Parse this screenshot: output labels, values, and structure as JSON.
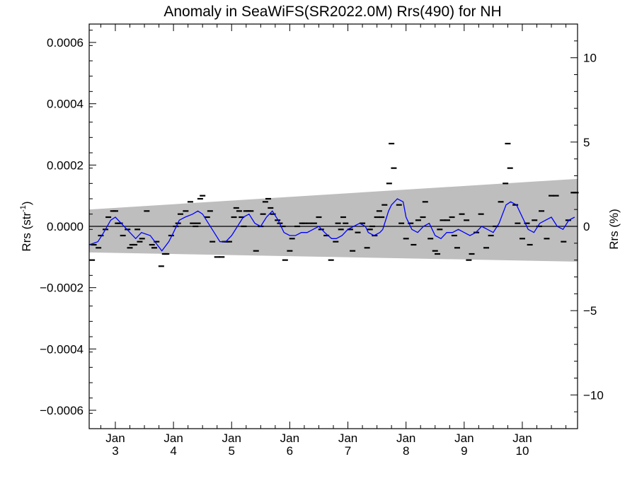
{
  "chart_data": {
    "type": "line",
    "title": "Anomaly in SeaWiFS(SR2022.0M) Rrs(490) for NH",
    "ylabel_left": {
      "main": "Rrs (str",
      "sup": "-1",
      "close": ")"
    },
    "ylabel_right": "Rrs (%)",
    "xlim": [
      2.55,
      10.95
    ],
    "ylim_left": [
      -0.00066,
      0.00066
    ],
    "ylim_right": [
      -12.0,
      12.0
    ],
    "x_ticks": [
      {
        "x": 3.0,
        "top": "Jan",
        "bottom": "3"
      },
      {
        "x": 4.0,
        "top": "Jan",
        "bottom": "4"
      },
      {
        "x": 5.0,
        "top": "Jan",
        "bottom": "5"
      },
      {
        "x": 6.0,
        "top": "Jan",
        "bottom": "6"
      },
      {
        "x": 7.0,
        "top": "Jan",
        "bottom": "7"
      },
      {
        "x": 8.0,
        "top": "Jan",
        "bottom": "8"
      },
      {
        "x": 9.0,
        "top": "Jan",
        "bottom": "9"
      },
      {
        "x": 10.0,
        "top": "Jan",
        "bottom": "10"
      }
    ],
    "y_ticks_left": [
      {
        "value": 0.0006,
        "label": "0.0006"
      },
      {
        "value": 0.0004,
        "label": "0.0004"
      },
      {
        "value": 0.0002,
        "label": "0.0002"
      },
      {
        "value": 0.0,
        "label": "0.0000"
      },
      {
        "value": -0.0002,
        "label": "−0.0002"
      },
      {
        "value": -0.0004,
        "label": "−0.0004"
      },
      {
        "value": -0.0006,
        "label": "−0.0006"
      }
    ],
    "y_ticks_right": [
      {
        "value": 10,
        "label": "10"
      },
      {
        "value": 5,
        "label": "5"
      },
      {
        "value": 0,
        "label": "0"
      },
      {
        "value": -5,
        "label": "−5"
      },
      {
        "value": -10,
        "label": "−10"
      }
    ],
    "band": {
      "x": [
        2.55,
        10.95
      ],
      "upper": [
        5.5e-05,
        0.000155
      ],
      "lower": [
        -8.5e-05,
        -0.000115
      ],
      "color": "#bebebe"
    },
    "zero_line": true,
    "series": [
      {
        "kind": "points",
        "marker": "dash",
        "color": "#000000",
        "points": [
          [
            2.6,
            -0.00011
          ],
          [
            2.63,
            -6e-05
          ],
          [
            2.71,
            -7e-05
          ],
          [
            2.75,
            -3e-05
          ],
          [
            2.83,
            -1e-05
          ],
          [
            2.88,
            3e-05
          ],
          [
            2.96,
            5e-05
          ],
          [
            3.0,
            5e-05
          ],
          [
            3.04,
            1e-05
          ],
          [
            3.08,
            1e-05
          ],
          [
            3.13,
            -3e-05
          ],
          [
            3.21,
            -1e-05
          ],
          [
            3.25,
            -7e-05
          ],
          [
            3.29,
            -6e-05
          ],
          [
            3.33,
            -6e-05
          ],
          [
            3.38,
            -1e-05
          ],
          [
            3.42,
            -5e-05
          ],
          [
            3.46,
            -4e-05
          ],
          [
            3.54,
            5e-05
          ],
          [
            3.63,
            -6e-05
          ],
          [
            3.67,
            -7e-05
          ],
          [
            3.71,
            -5e-05
          ],
          [
            3.79,
            -0.00013
          ],
          [
            3.85,
            -9e-05
          ],
          [
            3.88,
            -9e-05
          ],
          [
            3.96,
            -3e-05
          ],
          [
            4.04,
            0.0
          ],
          [
            4.08,
            1e-05
          ],
          [
            4.12,
            4e-05
          ],
          [
            4.21,
            5e-05
          ],
          [
            4.29,
            8e-05
          ],
          [
            4.33,
            1e-05
          ],
          [
            4.38,
            0.0
          ],
          [
            4.42,
            1e-05
          ],
          [
            4.46,
            9e-05
          ],
          [
            4.5,
            0.0001
          ],
          [
            4.58,
            3e-05
          ],
          [
            4.63,
            5e-05
          ],
          [
            4.67,
            -5e-05
          ],
          [
            4.75,
            -0.0001
          ],
          [
            4.83,
            -0.0001
          ],
          [
            4.88,
            -5e-05
          ],
          [
            4.92,
            -5e-05
          ],
          [
            4.96,
            -5e-05
          ],
          [
            5.04,
            3e-05
          ],
          [
            5.08,
            6e-05
          ],
          [
            5.13,
            5e-05
          ],
          [
            5.17,
            3e-05
          ],
          [
            5.21,
            0.0
          ],
          [
            5.25,
            5e-05
          ],
          [
            5.29,
            5e-05
          ],
          [
            5.33,
            5e-05
          ],
          [
            5.42,
            -8e-05
          ],
          [
            5.5,
            0.0
          ],
          [
            5.54,
            4e-05
          ],
          [
            5.58,
            8e-05
          ],
          [
            5.63,
            9e-05
          ],
          [
            5.67,
            6e-05
          ],
          [
            5.71,
            4e-05
          ],
          [
            5.79,
            2e-05
          ],
          [
            5.83,
            1e-05
          ],
          [
            5.88,
            0.0
          ],
          [
            5.92,
            -0.00011
          ],
          [
            6.0,
            -8e-05
          ],
          [
            6.04,
            -4e-05
          ],
          [
            6.13,
            0.0
          ],
          [
            6.21,
            1e-05
          ],
          [
            6.25,
            1e-05
          ],
          [
            6.33,
            1e-05
          ],
          [
            6.42,
            1e-05
          ],
          [
            6.5,
            3e-05
          ],
          [
            6.54,
            -1e-05
          ],
          [
            6.63,
            -3e-05
          ],
          [
            6.71,
            -0.00011
          ],
          [
            6.79,
            -5e-05
          ],
          [
            6.83,
            1e-05
          ],
          [
            6.88,
            -1e-05
          ],
          [
            6.92,
            3e-05
          ],
          [
            6.96,
            1e-05
          ],
          [
            7.04,
            -1e-05
          ],
          [
            7.08,
            -8e-05
          ],
          [
            7.17,
            -2e-05
          ],
          [
            7.25,
            1e-05
          ],
          [
            7.33,
            -7e-05
          ],
          [
            7.38,
            -1e-05
          ],
          [
            7.42,
            0.0
          ],
          [
            7.46,
            -3e-05
          ],
          [
            7.5,
            3e-05
          ],
          [
            7.54,
            5e-05
          ],
          [
            7.58,
            3e-05
          ],
          [
            7.63,
            7e-05
          ],
          [
            7.71,
            0.00014
          ],
          [
            7.75,
            0.00027
          ],
          [
            7.79,
            0.00019
          ],
          [
            7.88,
            7e-05
          ],
          [
            7.92,
            1e-05
          ],
          [
            8.0,
            -4e-05
          ],
          [
            8.08,
            1e-05
          ],
          [
            8.13,
            -6e-05
          ],
          [
            8.21,
            2e-05
          ],
          [
            8.29,
            3e-05
          ],
          [
            8.33,
            8e-05
          ],
          [
            8.42,
            -4e-05
          ],
          [
            8.5,
            -8e-05
          ],
          [
            8.54,
            -9e-05
          ],
          [
            8.58,
            -1e-05
          ],
          [
            8.63,
            2e-05
          ],
          [
            8.71,
            2e-05
          ],
          [
            8.79,
            3e-05
          ],
          [
            8.83,
            -3e-05
          ],
          [
            8.88,
            -7e-05
          ],
          [
            8.96,
            4e-05
          ],
          [
            9.04,
            2e-05
          ],
          [
            9.08,
            -0.00011
          ],
          [
            9.13,
            -9e-05
          ],
          [
            9.21,
            -2e-05
          ],
          [
            9.29,
            4e-05
          ],
          [
            9.38,
            -7e-05
          ],
          [
            9.46,
            -3e-05
          ],
          [
            9.54,
            0.0
          ],
          [
            9.63,
            8e-05
          ],
          [
            9.71,
            0.00014
          ],
          [
            9.75,
            0.00027
          ],
          [
            9.79,
            0.00019
          ],
          [
            9.88,
            7e-05
          ],
          [
            9.92,
            1e-05
          ],
          [
            10.0,
            -4e-05
          ],
          [
            10.08,
            1e-05
          ],
          [
            10.13,
            -6e-05
          ],
          [
            10.21,
            2e-05
          ],
          [
            10.29,
            0.0
          ],
          [
            10.33,
            5e-05
          ],
          [
            10.42,
            -4e-05
          ],
          [
            10.5,
            0.0001
          ],
          [
            10.58,
            0.0001
          ],
          [
            10.71,
            -5e-05
          ],
          [
            10.79,
            2e-05
          ],
          [
            10.88,
            0.00011
          ],
          [
            10.92,
            0.00011
          ]
        ]
      },
      {
        "kind": "line",
        "color": "#0000ff",
        "points": [
          [
            2.55,
            -6e-05
          ],
          [
            2.7,
            -5e-05
          ],
          [
            2.8,
            -2e-05
          ],
          [
            2.92,
            2e-05
          ],
          [
            3.0,
            3e-05
          ],
          [
            3.1,
            1e-05
          ],
          [
            3.2,
            -1e-05
          ],
          [
            3.35,
            -4e-05
          ],
          [
            3.45,
            -2e-05
          ],
          [
            3.6,
            -3e-05
          ],
          [
            3.72,
            -6e-05
          ],
          [
            3.8,
            -8e-05
          ],
          [
            3.92,
            -5e-05
          ],
          [
            4.0,
            -2e-05
          ],
          [
            4.1,
            2e-05
          ],
          [
            4.2,
            3e-05
          ],
          [
            4.33,
            4e-05
          ],
          [
            4.42,
            5e-05
          ],
          [
            4.5,
            4e-05
          ],
          [
            4.6,
            1e-05
          ],
          [
            4.7,
            -2e-05
          ],
          [
            4.8,
            -5e-05
          ],
          [
            4.9,
            -5e-05
          ],
          [
            5.0,
            -3e-05
          ],
          [
            5.1,
            0.0
          ],
          [
            5.2,
            3e-05
          ],
          [
            5.3,
            4e-05
          ],
          [
            5.4,
            1e-05
          ],
          [
            5.5,
            0.0
          ],
          [
            5.6,
            3e-05
          ],
          [
            5.7,
            5e-05
          ],
          [
            5.8,
            2e-05
          ],
          [
            5.9,
            -2e-05
          ],
          [
            6.0,
            -3e-05
          ],
          [
            6.1,
            -3e-05
          ],
          [
            6.2,
            -2e-05
          ],
          [
            6.3,
            -2e-05
          ],
          [
            6.4,
            -1e-05
          ],
          [
            6.5,
            0.0
          ],
          [
            6.6,
            -2e-05
          ],
          [
            6.72,
            -4e-05
          ],
          [
            6.8,
            -4e-05
          ],
          [
            6.9,
            -3e-05
          ],
          [
            7.0,
            -1e-05
          ],
          [
            7.1,
            0.0
          ],
          [
            7.2,
            1e-05
          ],
          [
            7.3,
            0.0
          ],
          [
            7.35,
            -2e-05
          ],
          [
            7.45,
            -3e-05
          ],
          [
            7.55,
            -2e-05
          ],
          [
            7.6,
            -1e-05
          ],
          [
            7.7,
            5e-05
          ],
          [
            7.75,
            7e-05
          ],
          [
            7.85,
            9e-05
          ],
          [
            7.95,
            8e-05
          ],
          [
            8.0,
            3e-05
          ],
          [
            8.1,
            -1e-05
          ],
          [
            8.2,
            -2e-05
          ],
          [
            8.3,
            0.0
          ],
          [
            8.4,
            1e-05
          ],
          [
            8.5,
            -3e-05
          ],
          [
            8.6,
            -4e-05
          ],
          [
            8.7,
            -2e-05
          ],
          [
            8.8,
            -2e-05
          ],
          [
            8.9,
            -1e-05
          ],
          [
            9.0,
            -2e-05
          ],
          [
            9.1,
            -3e-05
          ],
          [
            9.2,
            -2e-05
          ],
          [
            9.3,
            0.0
          ],
          [
            9.4,
            -1e-05
          ],
          [
            9.5,
            -2e-05
          ],
          [
            9.6,
            1e-05
          ],
          [
            9.72,
            7e-05
          ],
          [
            9.8,
            8e-05
          ],
          [
            9.9,
            7e-05
          ],
          [
            10.0,
            3e-05
          ],
          [
            10.1,
            -1e-05
          ],
          [
            10.2,
            -2e-05
          ],
          [
            10.3,
            1e-05
          ],
          [
            10.4,
            2e-05
          ],
          [
            10.5,
            3e-05
          ],
          [
            10.6,
            0.0
          ],
          [
            10.7,
            -1e-05
          ],
          [
            10.8,
            2e-05
          ],
          [
            10.9,
            3e-05
          ]
        ]
      }
    ]
  }
}
